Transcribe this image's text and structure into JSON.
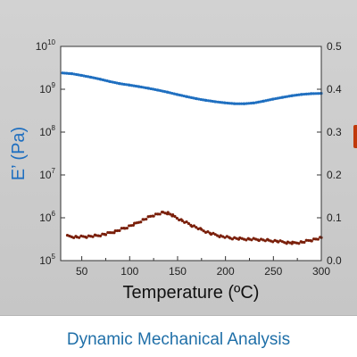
{
  "caption": "Dynamic Mechanical Analysis",
  "colors": {
    "panel": "#cbcbcb",
    "plot_bg": "#ffffff",
    "storage_series": "#1f6fc0",
    "tan_delta_series": "#7a1f0a",
    "left_axis_title": "#1f6fc0",
    "caption": "#1f6fa8",
    "edge_tab": "#c0390b"
  },
  "chart_data": {
    "type": "scatter",
    "title": "",
    "xlabel": "Temperature (ºC)",
    "ylabel": "E’ (Pa)",
    "y2label": "",
    "xlim": [
      28,
      300
    ],
    "xticks": [
      50,
      100,
      150,
      200,
      250,
      300
    ],
    "ylim": [
      100000,
      10000000000
    ],
    "yscale": "log",
    "yticks": [
      {
        "base": "10",
        "exp": "5"
      },
      {
        "base": "10",
        "exp": "6"
      },
      {
        "base": "10",
        "exp": "7"
      },
      {
        "base": "10",
        "exp": "8"
      },
      {
        "base": "10",
        "exp": "9"
      },
      {
        "base": "10",
        "exp": "10"
      }
    ],
    "y2lim": [
      0.0,
      0.5
    ],
    "y2ticks": [
      "0.0",
      "0.1",
      "0.2",
      "0.3",
      "0.4",
      "0.5"
    ],
    "grid": false,
    "series": [
      {
        "axis": "left",
        "x": [
          30,
          40,
          50,
          60,
          70,
          80,
          90,
          100,
          110,
          120,
          130,
          140,
          150,
          160,
          170,
          180,
          190,
          200,
          210,
          220,
          230,
          240,
          250,
          260,
          270,
          280,
          290,
          300
        ],
        "y": [
          2400000000.0,
          2300000000.0,
          2100000000.0,
          1900000000.0,
          1700000000.0,
          1500000000.0,
          1350000000.0,
          1250000000.0,
          1150000000.0,
          1050000000.0,
          950000000.0,
          850000000.0,
          750000000.0,
          670000000.0,
          600000000.0,
          550000000.0,
          510000000.0,
          480000000.0,
          460000000.0,
          460000000.0,
          480000000.0,
          530000000.0,
          590000000.0,
          650000000.0,
          710000000.0,
          760000000.0,
          790000000.0,
          800000000.0
        ]
      },
      {
        "axis": "right",
        "x": [
          35,
          45,
          55,
          65,
          75,
          85,
          95,
          105,
          115,
          125,
          135,
          140,
          145,
          155,
          165,
          175,
          185,
          195,
          205,
          215,
          225,
          235,
          245,
          255,
          265,
          270,
          280,
          290,
          300
        ],
        "y": [
          0.057,
          0.055,
          0.056,
          0.058,
          0.062,
          0.068,
          0.076,
          0.085,
          0.096,
          0.106,
          0.112,
          0.111,
          0.105,
          0.093,
          0.082,
          0.072,
          0.063,
          0.057,
          0.053,
          0.051,
          0.05,
          0.049,
          0.047,
          0.045,
          0.042,
          0.041,
          0.043,
          0.048,
          0.053
        ]
      }
    ]
  }
}
